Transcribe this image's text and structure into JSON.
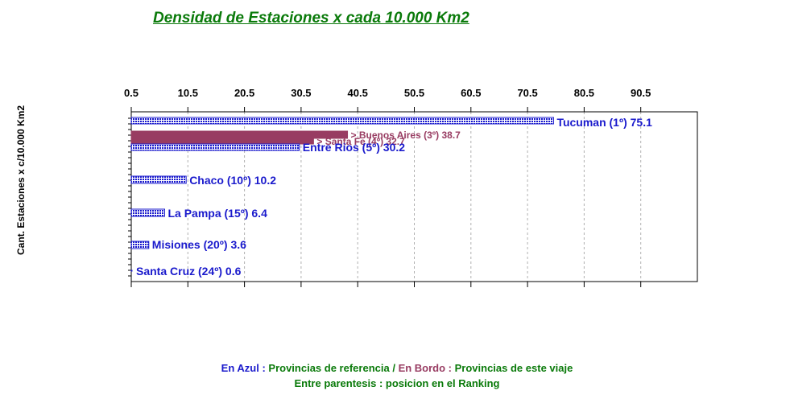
{
  "chart_data": {
    "type": "bar",
    "orientation": "horizontal",
    "title": "Densidad de Estaciones x cada 10.000 Km2",
    "ylabel": "Cant. Estaciones x c/10.000 Km2",
    "x_ticks": [
      "0.5",
      "10.5",
      "20.5",
      "30.5",
      "40.5",
      "50.5",
      "60.5",
      "70.5",
      "80.5",
      "90.5"
    ],
    "xlim": [
      0.5,
      100.5
    ],
    "grid": true,
    "bars": [
      {
        "label": "Tucuman (1º) 75.1",
        "value": 75.1,
        "group": "referencia"
      },
      {
        "label": "> Buenos Aires (3º) 38.7",
        "value": 38.7,
        "group": "viaje"
      },
      {
        "label": "> Santa Fe (4º) 32.7",
        "value": 32.7,
        "group": "viaje"
      },
      {
        "label": "Entre Rios (5º) 30.2",
        "value": 30.2,
        "group": "referencia"
      },
      {
        "label": "Chaco (10º) 10.2",
        "value": 10.2,
        "group": "referencia"
      },
      {
        "label": "La Pampa (15º) 6.4",
        "value": 6.4,
        "group": "referencia"
      },
      {
        "label": "Misiones (20º) 3.6",
        "value": 3.6,
        "group": "referencia"
      },
      {
        "label": "Santa Cruz (24º) 0.6",
        "value": 0.6,
        "group": "referencia"
      }
    ],
    "colors": {
      "referencia": "#1a1acc",
      "viaje": "#983c62",
      "grid": "#b0b0b0",
      "axis": "#000000"
    }
  },
  "legend": {
    "azul_label": "En Azul :",
    "azul_text": "Provincias de referencia /",
    "bordo_label": "En Bordo :",
    "bordo_text": "Provincias de este viaje",
    "note": "Entre parentesis : posicion en el Ranking"
  }
}
